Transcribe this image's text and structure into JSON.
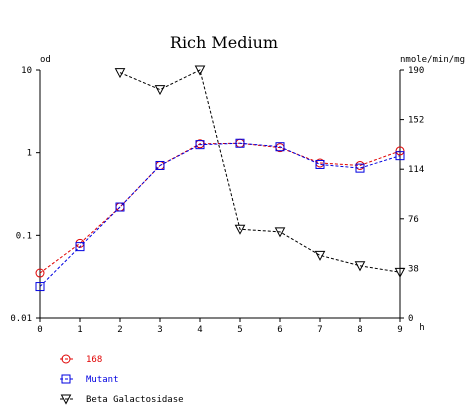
{
  "chart_data": {
    "type": "line",
    "title": "Rich Medium",
    "x": [
      0,
      1,
      2,
      3,
      4,
      5,
      6,
      7,
      8,
      9
    ],
    "x_ticks": [
      "0",
      "1",
      "2",
      "3",
      "4",
      "5",
      "6",
      "7",
      "8",
      "9"
    ],
    "xlabel": "h",
    "xlim": [
      0,
      9
    ],
    "y_left": {
      "label": "od",
      "scale": "log",
      "lim": [
        0.01,
        10
      ],
      "ticks": [
        10,
        1,
        0.1,
        0.01
      ],
      "tick_labels": [
        "10",
        "1",
        "0.1",
        "0.01"
      ]
    },
    "y_right": {
      "label": "nmole/min/mg",
      "scale": "linear",
      "lim": [
        0,
        190
      ],
      "ticks": [
        190,
        152,
        114,
        76,
        38,
        0
      ],
      "tick_labels": [
        "190",
        "152",
        "114",
        "76",
        "38",
        "0"
      ]
    },
    "grid": false,
    "legend_position": "bottom-left",
    "series": [
      {
        "name": "168",
        "axis": "left",
        "color": "#e00000",
        "marker": "circle",
        "x": [
          0,
          1,
          2,
          3,
          4,
          5,
          6,
          7,
          8,
          9
        ],
        "values": [
          0.035,
          0.08,
          0.22,
          0.7,
          1.28,
          1.3,
          1.15,
          0.75,
          0.7,
          1.05
        ]
      },
      {
        "name": "Mutant",
        "axis": "left",
        "color": "#0000e0",
        "marker": "square",
        "x": [
          0,
          1,
          2,
          3,
          4,
          5,
          6,
          7,
          8,
          9
        ],
        "values": [
          0.024,
          0.073,
          0.22,
          0.7,
          1.25,
          1.3,
          1.18,
          0.72,
          0.65,
          0.92
        ]
      },
      {
        "name": "Beta Galactosidase",
        "axis": "right",
        "color": "#000000",
        "marker": "triangle-down",
        "x": [
          2,
          3,
          4,
          5,
          6,
          7,
          8,
          9
        ],
        "values": [
          188,
          175,
          190,
          68,
          66,
          48,
          40,
          35
        ]
      }
    ]
  }
}
